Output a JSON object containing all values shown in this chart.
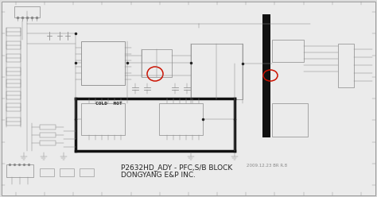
{
  "bg_color": "#dcdcdc",
  "diagram_bg": "#ebebeb",
  "line_color": "#777777",
  "dark_line": "#222222",
  "title_line1": "P2632HD_ADY - PFC,S/B BLOCK",
  "title_line2": "DONGYANG E&P INC.",
  "date_text": "2009.12.23 BR R.8",
  "cold_hot_text": "COLD  HOT",
  "title_fontsize": 6.5,
  "date_fontsize": 4.0,
  "cold_hot_fontsize": 4.5,
  "fig_width": 4.74,
  "fig_height": 2.48,
  "dpi": 100,
  "outer_border_color": "#999999",
  "schematic_line_color": "#888888",
  "thick_line_color": "#111111",
  "red_circle_color": "#cc1100",
  "accent_box_color": "#111111"
}
